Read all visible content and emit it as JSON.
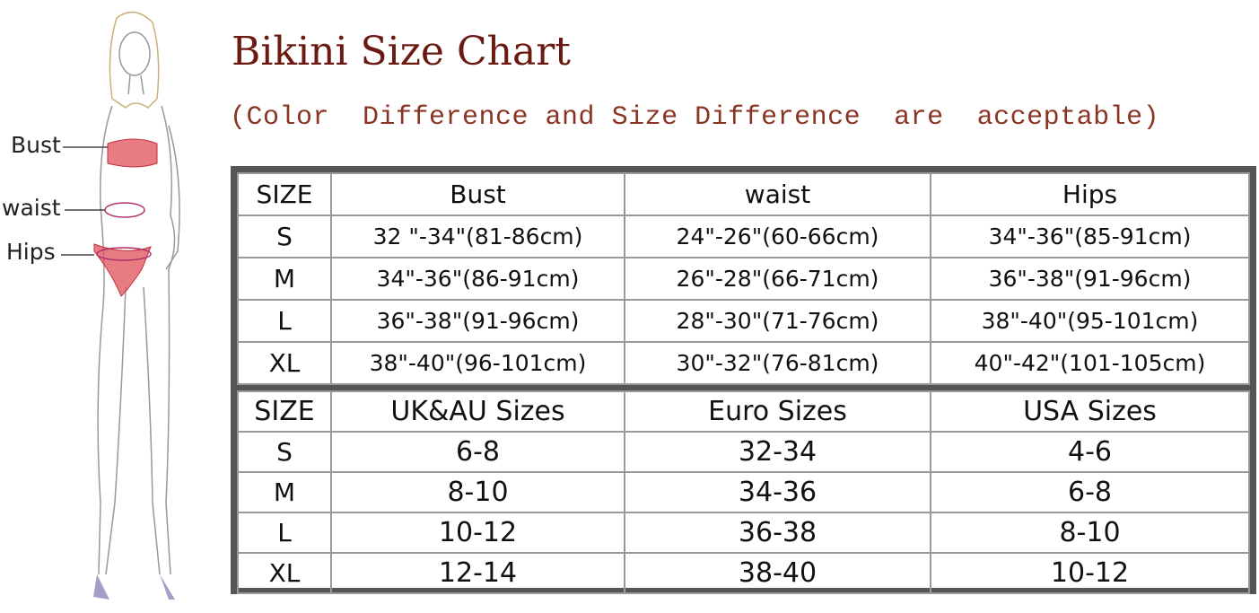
{
  "title": "Bikini Size Chart",
  "subtitle": "(Color  Difference and Size Difference  are  acceptable)",
  "figure": {
    "labels": {
      "bust": "Bust",
      "waist": "waist",
      "hips": "Hips"
    },
    "accent_color": "#e0505a"
  },
  "measurements": {
    "headers": [
      "SIZE",
      "Bust",
      "waist",
      "Hips"
    ],
    "rows": [
      [
        "S",
        "32 \"-34\"(81-86cm)",
        "24\"-26\"(60-66cm)",
        "34\"-36\"(85-91cm)"
      ],
      [
        "M",
        "34\"-36\"(86-91cm)",
        "26\"-28\"(66-71cm)",
        "36\"-38\"(91-96cm)"
      ],
      [
        "L",
        "36\"-38\"(91-96cm)",
        "28\"-30\"(71-76cm)",
        "38\"-40\"(95-101cm)"
      ],
      [
        "XL",
        "38\"-40\"(96-101cm)",
        "30\"-32\"(76-81cm)",
        "40\"-42\"(101-105cm)"
      ]
    ]
  },
  "conversions": {
    "headers": [
      "SIZE",
      "UK&AU Sizes",
      "Euro Sizes",
      "USA Sizes"
    ],
    "rows": [
      [
        "S",
        "6-8",
        "32-34",
        "4-6"
      ],
      [
        "M",
        "8-10",
        "34-36",
        "6-8"
      ],
      [
        "L",
        "10-12",
        "36-38",
        "8-10"
      ],
      [
        "XL",
        "12-14",
        "38-40",
        "10-12"
      ]
    ]
  }
}
